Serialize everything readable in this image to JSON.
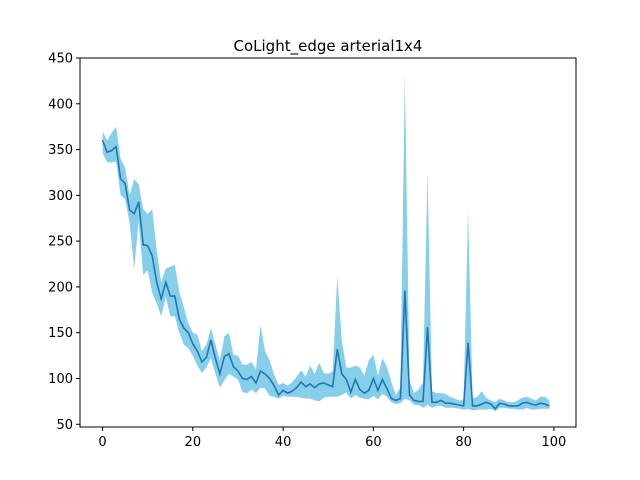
{
  "chart_data": {
    "type": "line",
    "title": "CoLight_edge arterial1x4",
    "xlabel": "",
    "ylabel": "",
    "xlim": [
      -5.0,
      104.9
    ],
    "ylim": [
      47,
      450
    ],
    "xticks": [
      0,
      20,
      40,
      60,
      80,
      100
    ],
    "yticks": [
      50,
      100,
      150,
      200,
      250,
      300,
      350,
      400,
      450
    ],
    "grid": false,
    "colors": {
      "line": "#1f77b4",
      "band": "#87ceeb"
    },
    "x": [
      0,
      1,
      2,
      3,
      4,
      5,
      6,
      7,
      8,
      9,
      10,
      11,
      12,
      13,
      14,
      15,
      16,
      17,
      18,
      19,
      20,
      21,
      22,
      23,
      24,
      25,
      26,
      27,
      28,
      29,
      30,
      31,
      32,
      33,
      34,
      35,
      36,
      37,
      38,
      39,
      40,
      41,
      42,
      43,
      44,
      45,
      46,
      47,
      48,
      49,
      50,
      51,
      52,
      53,
      54,
      55,
      56,
      57,
      58,
      59,
      60,
      61,
      62,
      63,
      64,
      65,
      66,
      67,
      68,
      69,
      70,
      71,
      72,
      73,
      74,
      75,
      76,
      77,
      78,
      79,
      80,
      81,
      82,
      83,
      84,
      85,
      86,
      87,
      88,
      89,
      90,
      91,
      92,
      93,
      94,
      95,
      96,
      97,
      98,
      99
    ],
    "series": [
      {
        "mean": [
          360,
          347,
          349,
          353,
          318,
          313,
          284,
          280,
          293,
          246,
          245,
          234,
          205,
          187,
          205,
          190,
          190,
          165,
          155,
          150,
          138,
          130,
          118,
          123,
          142,
          122,
          105,
          124,
          127,
          113,
          108,
          100,
          99,
          102,
          95,
          108,
          105,
          100,
          92,
          82,
          87,
          84,
          86,
          90,
          96,
          91,
          94,
          90,
          94,
          95,
          93,
          91,
          132,
          105,
          99,
          85,
          99,
          88,
          84,
          87,
          100,
          87,
          99,
          89,
          78,
          76,
          78,
          196,
          82,
          76,
          75,
          75,
          156,
          74,
          74,
          76,
          73,
          73,
          72,
          71,
          70,
          139,
          70,
          70,
          72,
          74,
          72,
          67,
          73,
          72,
          70,
          70,
          70,
          73,
          74,
          72,
          71,
          73,
          72,
          70
        ],
        "upper": [
          370,
          360,
          368,
          375,
          340,
          330,
          300,
          318,
          312,
          285,
          280,
          285,
          240,
          205,
          220,
          222,
          224,
          195,
          178,
          160,
          150,
          148,
          130,
          137,
          155,
          137,
          120,
          146,
          150,
          126,
          125,
          115,
          115,
          118,
          110,
          158,
          130,
          120,
          104,
          93,
          95,
          92,
          96,
          102,
          109,
          102,
          114,
          105,
          117,
          106,
          105,
          108,
          212,
          141,
          112,
          112,
          114,
          112,
          103,
          120,
          126,
          103,
          122,
          113,
          96,
          82,
          90,
          432,
          98,
          84,
          88,
          96,
          325,
          86,
          84,
          84,
          83,
          80,
          78,
          76,
          76,
          283,
          78,
          80,
          86,
          79,
          76,
          74,
          78,
          76,
          74,
          74,
          76,
          79,
          80,
          78,
          76,
          80,
          80,
          76
        ],
        "lower": [
          346,
          336,
          336,
          337,
          300,
          296,
          270,
          220,
          272,
          213,
          218,
          194,
          182,
          168,
          189,
          168,
          168,
          150,
          137,
          133,
          125,
          114,
          106,
          112,
          122,
          105,
          90,
          98,
          105,
          102,
          99,
          85,
          84,
          88,
          84,
          90,
          89,
          81,
          80,
          78,
          81,
          80,
          80,
          80,
          79,
          78,
          78,
          76,
          75,
          79,
          80,
          80,
          80,
          82,
          85,
          78,
          82,
          79,
          78,
          77,
          81,
          77,
          83,
          80,
          74,
          72,
          73,
          78,
          76,
          71,
          71,
          68,
          71,
          68,
          70,
          70,
          68,
          68,
          68,
          67,
          66,
          67,
          65,
          66,
          66,
          66,
          67,
          64,
          68,
          68,
          67,
          67,
          66,
          66,
          68,
          66,
          66,
          67,
          67,
          67
        ]
      }
    ]
  }
}
